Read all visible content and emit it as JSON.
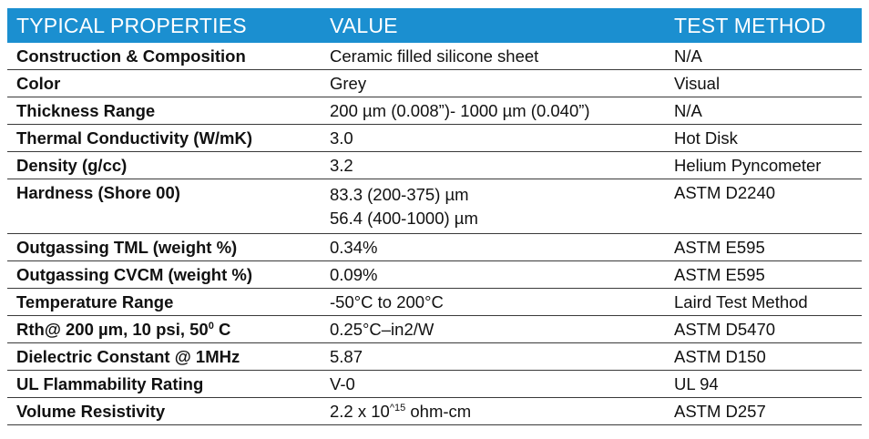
{
  "header": {
    "col_property": "TYPICAL PROPERTIES",
    "col_value": "VALUE",
    "col_method": "TEST METHOD"
  },
  "rows": [
    {
      "property": "Construction & Composition",
      "value": "Ceramic filled silicone sheet",
      "method": "N/A"
    },
    {
      "property": "Color",
      "value": "Grey",
      "method": "Visual"
    },
    {
      "property": "Thickness Range",
      "value": "200 µm (0.008”)- 1000 µm (0.040”)",
      "method": "N/A"
    },
    {
      "property": "Thermal Conductivity (W/mK)",
      "value": "3.0",
      "method": "Hot Disk"
    },
    {
      "property": "Density (g/cc)",
      "value": "3.2",
      "method": "Helium Pyncometer"
    },
    {
      "property": "Hardness (Shore 00)",
      "value": "83.3 (200-375) µm",
      "value2": "56.4 (400-1000) µm",
      "method": "ASTM D2240"
    },
    {
      "property": "Outgassing TML (weight %)",
      "value": "0.34%",
      "method": "ASTM E595"
    },
    {
      "property": "Outgassing CVCM (weight %)",
      "value": "0.09%",
      "method": "ASTM E595"
    },
    {
      "property": "Temperature Range",
      "value": "-50°C to 200°C",
      "method": "Laird Test Method"
    },
    {
      "property_main": "Rth@ 200 µm, 10 psi, 50",
      "property_sup": "0",
      "property_tail": " C",
      "value": "0.25°C–in2/W",
      "method": "ASTM D5470"
    },
    {
      "property": "Dielectric Constant @ 1MHz",
      "value": "5.87",
      "method": "ASTM D150"
    },
    {
      "property": "UL Flammability Rating",
      "value": "V-0",
      "method": "UL 94"
    },
    {
      "property": "Volume Resistivity",
      "value_main": "2.2 x 10",
      "value_sup": "^15",
      "value_tail": " ohm-cm",
      "method": "ASTM D257"
    }
  ]
}
